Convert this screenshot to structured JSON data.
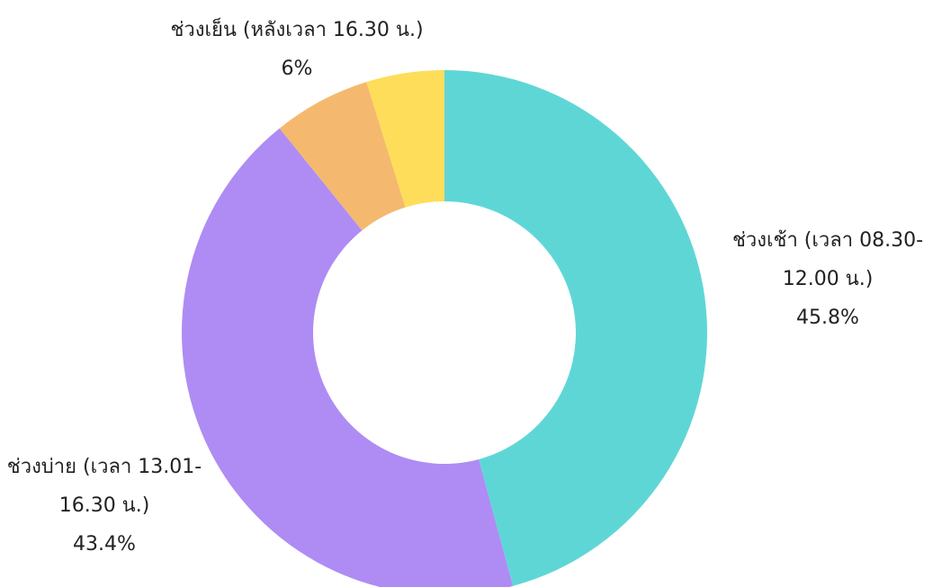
{
  "chart_data": {
    "type": "donut",
    "categories": [
      "ช่วงเช้า (เวลา 08.30-12.00 น.)",
      "ช่วงบ่าย (เวลา 13.01-16.30 น.)",
      "ช่วงเย็น (หลังเวลา 16.30 น.)",
      null
    ],
    "values": [
      45.8,
      43.4,
      6,
      4.8
    ],
    "value_labels": [
      "45.8%",
      "43.4%",
      "6%",
      null
    ],
    "colors": [
      "#5fd6d6",
      "#ae8cf4",
      "#f4b96e",
      "#fedd5a"
    ]
  }
}
